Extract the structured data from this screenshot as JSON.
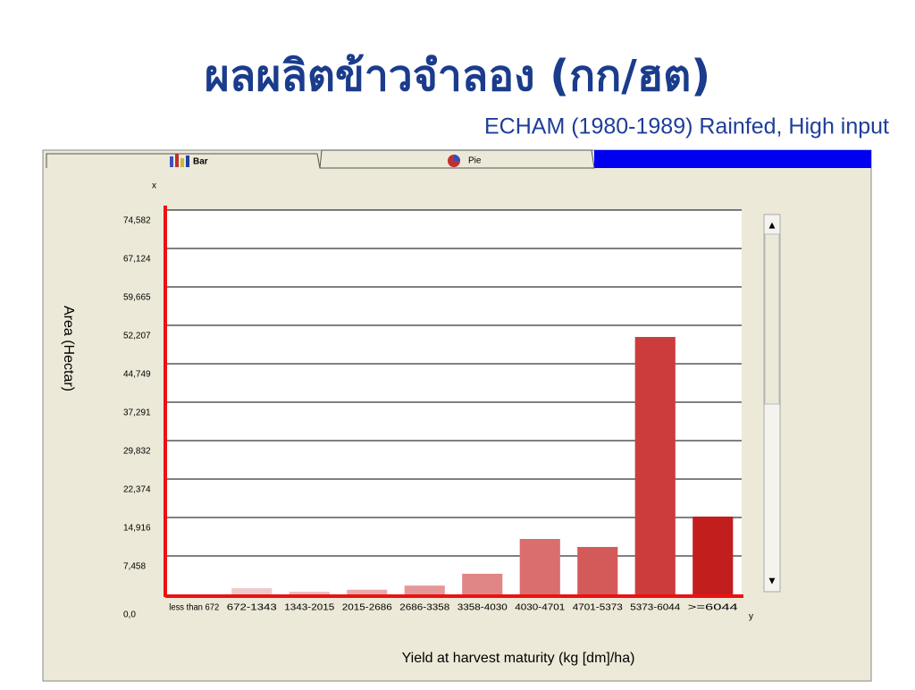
{
  "title": "ผลผลิตข้าวจำลอง (กก/ฮต)",
  "subtitle": "ECHAM (1980-1989) Rainfed, High input",
  "tabs": [
    "Bar",
    "Pie"
  ],
  "chart_data": {
    "type": "bar",
    "x_label": "Yield at harvest maturity (kg [dm]/ha)",
    "y_label": "Area (Hectar)",
    "axis_letters": [
      "x",
      "y"
    ],
    "categories": [
      "less than 672",
      "672-1343",
      "1343-2015",
      "2015-2686",
      "2686-3358",
      "3358-4030",
      "4030-4701",
      "4701-5373",
      "5373-6044",
      ">=6044"
    ],
    "values": [
      0,
      1200,
      500,
      900,
      1700,
      4000,
      10750,
      9200,
      49950,
      15100
    ],
    "colors": [
      "#f2d6d6",
      "#efcaca",
      "#ecbcbc",
      "#e9aaaa",
      "#e59898",
      "#e08686",
      "#da6e6e",
      "#d45a5a",
      "#cc3c3c",
      "#c21e1e"
    ],
    "ylim": [
      0,
      74582
    ],
    "yticks": [
      {
        "value": 0,
        "label": "0,0"
      },
      {
        "value": 7458,
        "label": "7,458"
      },
      {
        "value": 14916,
        "label": "14,916"
      },
      {
        "value": 22374,
        "label": "22,374"
      },
      {
        "value": 29832,
        "label": "29,832"
      },
      {
        "value": 37291,
        "label": "37,291"
      },
      {
        "value": 44749,
        "label": "44,749"
      },
      {
        "value": 52207,
        "label": "52,207"
      },
      {
        "value": 59665,
        "label": "59,665"
      },
      {
        "value": 67124,
        "label": "67,124"
      },
      {
        "value": 74582,
        "label": "74,582"
      }
    ],
    "grid": true
  }
}
